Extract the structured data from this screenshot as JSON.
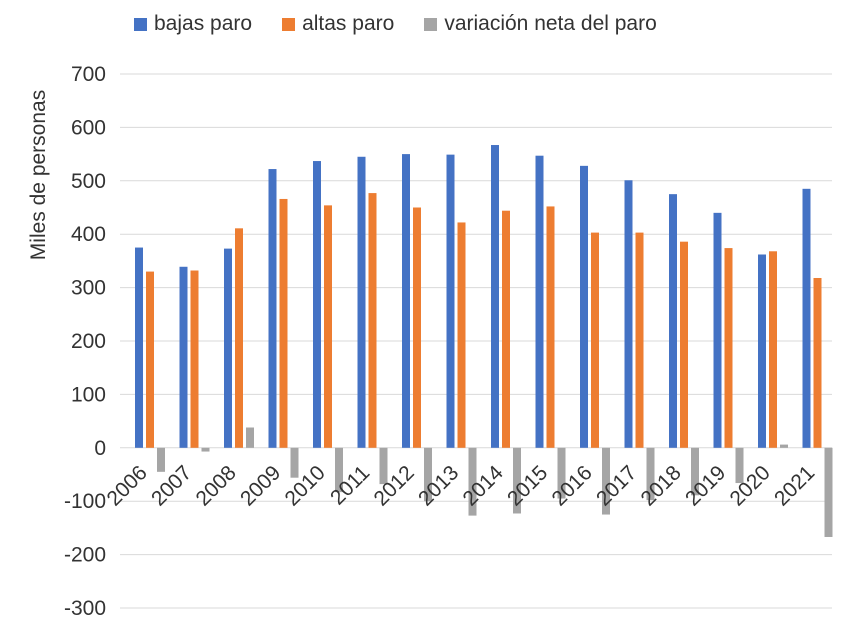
{
  "chart_data": {
    "type": "bar",
    "categories": [
      "2006",
      "2007",
      "2008",
      "2009",
      "2010",
      "2011",
      "2012",
      "2013",
      "2014",
      "2015",
      "2016",
      "2017",
      "2018",
      "2019",
      "2020",
      "2021"
    ],
    "series": [
      {
        "name": "bajas paro",
        "color": "#4472C4",
        "values": [
          375,
          339,
          373,
          522,
          537,
          545,
          550,
          549,
          567,
          547,
          528,
          501,
          475,
          440,
          362,
          485
        ]
      },
      {
        "name": "altas paro",
        "color": "#ED7D31",
        "values": [
          330,
          332,
          411,
          466,
          454,
          477,
          450,
          422,
          444,
          452,
          403,
          403,
          386,
          374,
          368,
          318
        ]
      },
      {
        "name": "variación neta del paro",
        "color": "#A5A5A5",
        "values": [
          -45,
          -7,
          38,
          -56,
          -83,
          -68,
          -100,
          -127,
          -123,
          -95,
          -125,
          -98,
          -89,
          -66,
          6,
          -167
        ]
      }
    ],
    "title": "",
    "xlabel": "",
    "ylabel": "Miles de personas",
    "ylim": [
      -300,
      700
    ],
    "yticks": [
      "700",
      "600",
      "500",
      "400",
      "300",
      "200",
      "100",
      "0",
      "-100",
      "-200",
      "-300"
    ],
    "grid": true,
    "legend": "top"
  }
}
